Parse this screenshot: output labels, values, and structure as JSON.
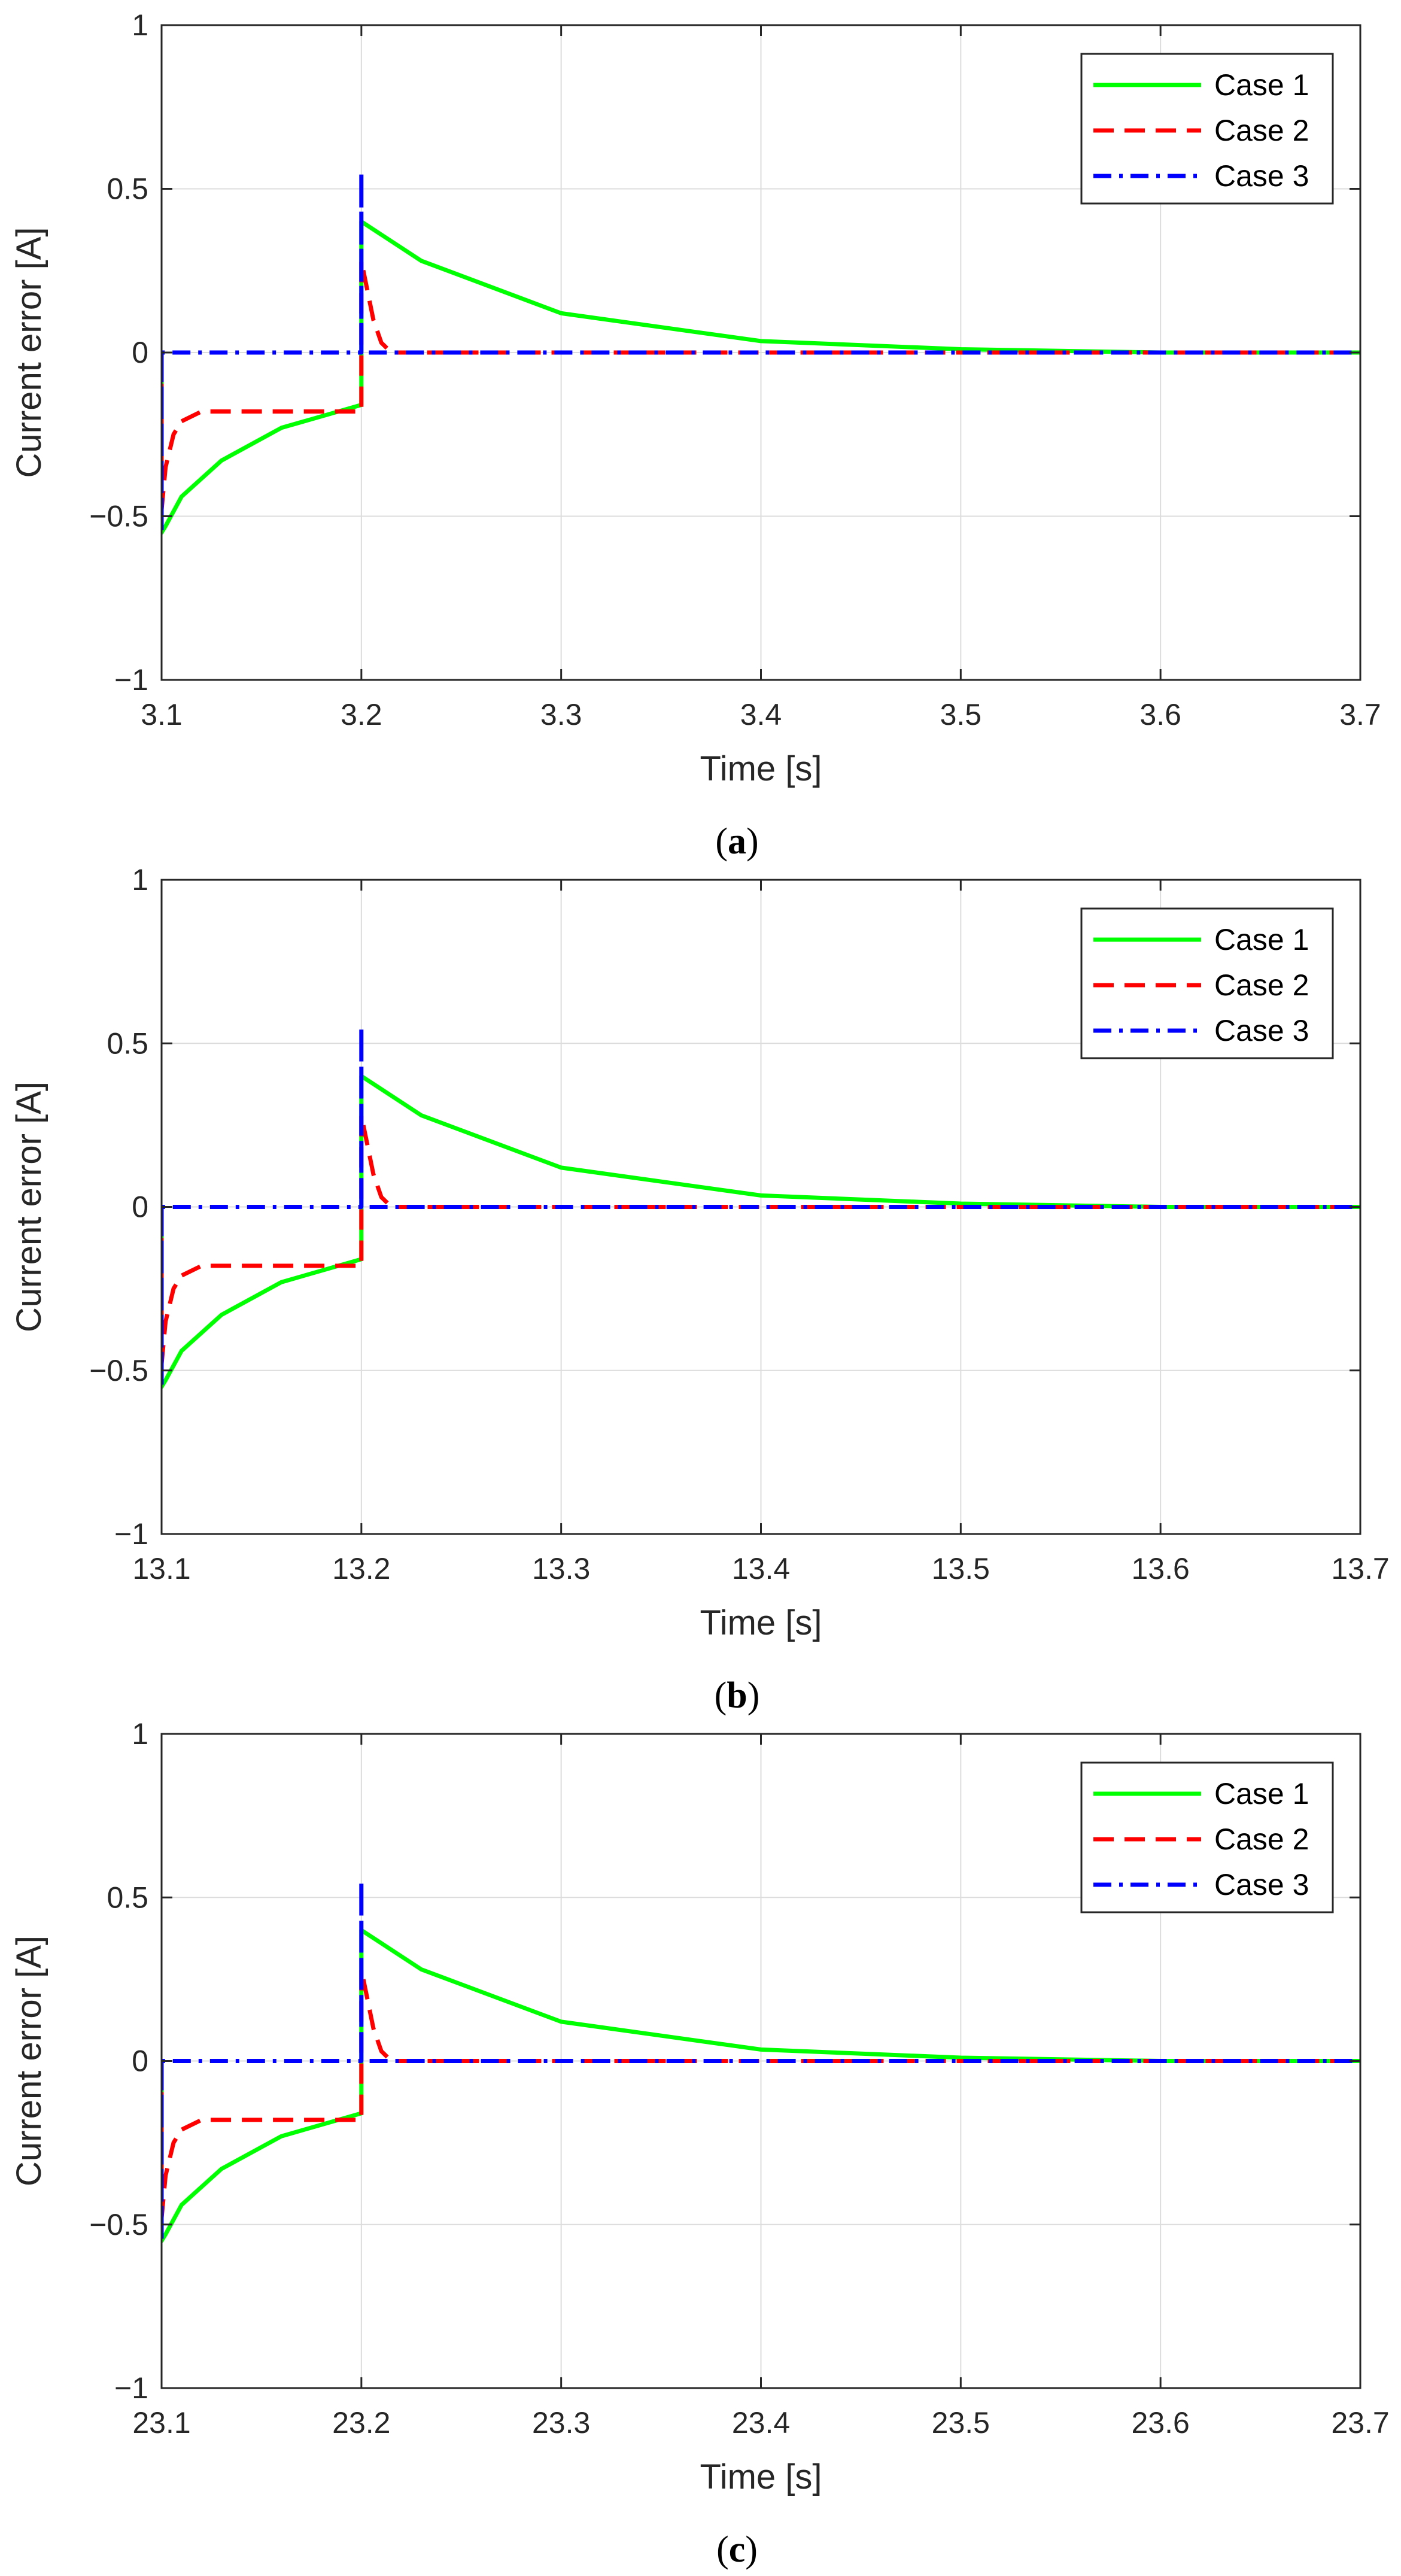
{
  "chart_data": [
    {
      "type": "line",
      "panel": "a",
      "caption": "a",
      "xlabel": "Time [s]",
      "ylabel": "Current error [A]",
      "xlim": [
        3.1,
        3.7
      ],
      "ylim": [
        -1,
        1
      ],
      "xticks": [
        3.1,
        3.2,
        3.3,
        3.4,
        3.5,
        3.6,
        3.7
      ],
      "xtick_labels": [
        "3.1",
        "3.2",
        "3.3",
        "3.4",
        "3.5",
        "3.6",
        "3.7"
      ],
      "yticks": [
        -1,
        -0.5,
        0,
        0.5,
        1
      ],
      "ytick_labels": [
        "−1",
        "−0.5",
        "0",
        "0.5",
        "1"
      ],
      "grid": true,
      "legend_position": "top-right",
      "series": [
        {
          "name": "Case 1",
          "color": "#00ff00",
          "dash": "solid",
          "x": [
            3.1,
            3.1,
            3.102,
            3.11,
            3.13,
            3.16,
            3.2,
            3.2,
            3.2,
            3.23,
            3.3,
            3.4,
            3.5,
            3.6,
            3.7
          ],
          "y": [
            0,
            -0.55,
            -0.53,
            -0.44,
            -0.33,
            -0.23,
            -0.16,
            -0.16,
            0.4,
            0.28,
            0.12,
            0.035,
            0.01,
            0.0,
            0.0
          ]
        },
        {
          "name": "Case 2",
          "color": "#ff0000",
          "dash": "dashed",
          "x": [
            3.1,
            3.1,
            3.102,
            3.106,
            3.11,
            3.12,
            3.2,
            3.2,
            3.2,
            3.202,
            3.206,
            3.21,
            3.215,
            3.7
          ],
          "y": [
            0,
            -0.48,
            -0.35,
            -0.25,
            -0.21,
            -0.18,
            -0.18,
            -0.18,
            0.28,
            0.22,
            0.1,
            0.03,
            0.0,
            0.0
          ]
        },
        {
          "name": "Case 3",
          "color": "#0000ff",
          "dash": "dashdot",
          "x": [
            3.1,
            3.1,
            3.1,
            3.2,
            3.2,
            3.2,
            3.7
          ],
          "y": [
            0,
            -0.55,
            0,
            0,
            0.55,
            0,
            0
          ]
        }
      ]
    },
    {
      "type": "line",
      "panel": "b",
      "caption": "b",
      "xlabel": "Time [s]",
      "ylabel": "Current error [A]",
      "xlim": [
        13.1,
        13.7
      ],
      "ylim": [
        -1,
        1
      ],
      "xticks": [
        13.1,
        13.2,
        13.3,
        13.4,
        13.5,
        13.6,
        13.7
      ],
      "xtick_labels": [
        "13.1",
        "13.2",
        "13.3",
        "13.4",
        "13.5",
        "13.6",
        "13.7"
      ],
      "yticks": [
        -1,
        -0.5,
        0,
        0.5,
        1
      ],
      "ytick_labels": [
        "−1",
        "−0.5",
        "0",
        "0.5",
        "1"
      ],
      "grid": true,
      "legend_position": "top-right",
      "series": [
        {
          "name": "Case 1",
          "color": "#00ff00",
          "dash": "solid",
          "x": [
            13.1,
            13.1,
            13.102,
            13.11,
            13.13,
            13.16,
            13.2,
            13.2,
            13.2,
            13.23,
            13.3,
            13.4,
            13.5,
            13.6,
            13.7
          ],
          "y": [
            0,
            -0.55,
            -0.53,
            -0.44,
            -0.33,
            -0.23,
            -0.16,
            -0.16,
            0.4,
            0.28,
            0.12,
            0.035,
            0.01,
            0.0,
            0.0
          ]
        },
        {
          "name": "Case 2",
          "color": "#ff0000",
          "dash": "dashed",
          "x": [
            13.1,
            13.1,
            13.102,
            13.106,
            13.11,
            13.12,
            13.2,
            13.2,
            13.2,
            13.202,
            13.206,
            13.21,
            13.215,
            13.7
          ],
          "y": [
            0,
            -0.48,
            -0.35,
            -0.25,
            -0.21,
            -0.18,
            -0.18,
            -0.18,
            0.28,
            0.22,
            0.1,
            0.03,
            0.0,
            0.0
          ]
        },
        {
          "name": "Case 3",
          "color": "#0000ff",
          "dash": "dashdot",
          "x": [
            13.1,
            13.1,
            13.1,
            13.2,
            13.2,
            13.2,
            13.7
          ],
          "y": [
            0,
            -0.55,
            0,
            0,
            0.55,
            0,
            0
          ]
        }
      ]
    },
    {
      "type": "line",
      "panel": "c",
      "caption": "c",
      "xlabel": "Time [s]",
      "ylabel": "Current error [A]",
      "xlim": [
        23.1,
        23.7
      ],
      "ylim": [
        -1,
        1
      ],
      "xticks": [
        23.1,
        23.2,
        23.3,
        23.4,
        23.5,
        23.6,
        23.7
      ],
      "xtick_labels": [
        "23.1",
        "23.2",
        "23.3",
        "23.4",
        "23.5",
        "23.6",
        "23.7"
      ],
      "yticks": [
        -1,
        -0.5,
        0,
        0.5,
        1
      ],
      "ytick_labels": [
        "−1",
        "−0.5",
        "0",
        "0.5",
        "1"
      ],
      "grid": true,
      "legend_position": "top-right",
      "series": [
        {
          "name": "Case 1",
          "color": "#00ff00",
          "dash": "solid",
          "x": [
            23.1,
            23.1,
            23.102,
            23.11,
            23.13,
            23.16,
            23.2,
            23.2,
            23.2,
            23.23,
            23.3,
            23.4,
            23.5,
            23.6,
            23.7
          ],
          "y": [
            0,
            -0.55,
            -0.53,
            -0.44,
            -0.33,
            -0.23,
            -0.16,
            -0.16,
            0.4,
            0.28,
            0.12,
            0.035,
            0.01,
            0.0,
            0.0
          ]
        },
        {
          "name": "Case 2",
          "color": "#ff0000",
          "dash": "dashed",
          "x": [
            23.1,
            23.1,
            23.102,
            23.106,
            23.11,
            23.12,
            23.2,
            23.2,
            23.2,
            23.202,
            23.206,
            23.21,
            23.215,
            23.7
          ],
          "y": [
            0,
            -0.48,
            -0.35,
            -0.25,
            -0.21,
            -0.18,
            -0.18,
            -0.18,
            0.28,
            0.22,
            0.1,
            0.03,
            0.0,
            0.0
          ]
        },
        {
          "name": "Case 3",
          "color": "#0000ff",
          "dash": "dashdot",
          "x": [
            23.1,
            23.1,
            23.1,
            23.2,
            23.2,
            23.2,
            23.7
          ],
          "y": [
            0,
            -0.55,
            0,
            0,
            0.55,
            0,
            0
          ]
        }
      ]
    }
  ]
}
